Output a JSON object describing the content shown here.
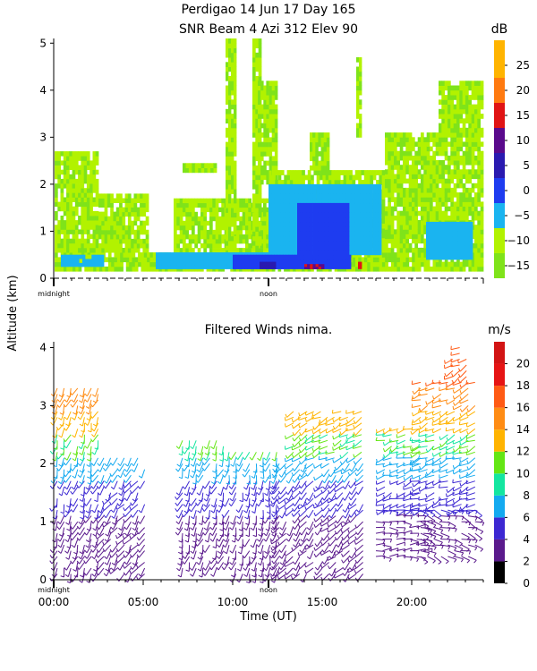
{
  "figure": {
    "title_line1": "Perdigao  14 Jun 17 Day 165",
    "title_line2": "SNR Beam 4 Azi 312 Elev 90",
    "shared_ylabel": "Altitude (km)"
  },
  "chart_data": [
    {
      "type": "heatmap",
      "panel": "snr",
      "title": "SNR Beam 4 Azi 312 Elev 90",
      "ylabel": "Altitude (km)",
      "xlim": [
        0,
        24
      ],
      "ylim": [
        0,
        5.1
      ],
      "yticks": [
        0,
        1,
        2,
        3,
        4,
        5
      ],
      "ytick_labels": [
        "0",
        "1",
        "2",
        "3",
        "4",
        "5"
      ],
      "x_markers": [
        {
          "x": 0,
          "label": "midnight"
        },
        {
          "x": 12,
          "label": "noon"
        }
      ],
      "colorbar": {
        "unit": "dB",
        "ticks": [
          25,
          20,
          15,
          10,
          5,
          0,
          -5,
          -10,
          -15
        ],
        "tick_labels": [
          "25",
          "20",
          "15",
          "10",
          "5",
          "0",
          "−5",
          "−10",
          "−15"
        ],
        "range": [
          -17.5,
          30
        ],
        "bands": [
          {
            "from": -17.5,
            "to": -12.5,
            "color": "#7fe31a"
          },
          {
            "from": -12.5,
            "to": -7.5,
            "color": "#b2f200"
          },
          {
            "from": -7.5,
            "to": -2.5,
            "color": "#1ab4f0"
          },
          {
            "from": -2.5,
            "to": 2.5,
            "color": "#1e3cf0"
          },
          {
            "from": 2.5,
            "to": 7.5,
            "color": "#2a1ab0"
          },
          {
            "from": 7.5,
            "to": 12.5,
            "color": "#5a0a8c"
          },
          {
            "from": 12.5,
            "to": 17.5,
            "color": "#e01414"
          },
          {
            "from": 17.5,
            "to": 22.5,
            "color": "#ff7a10"
          },
          {
            "from": 22.5,
            "to": 30,
            "color": "#ffb400"
          }
        ]
      },
      "regions": [
        {
          "x": [
            0.05,
            24
          ],
          "y": [
            0.15,
            0.55
          ],
          "snr": -12
        },
        {
          "x": [
            0.05,
            2.5
          ],
          "y": [
            0.55,
            2.7
          ],
          "snr": -12
        },
        {
          "x": [
            2.5,
            5.3
          ],
          "y": [
            0.55,
            1.8
          ],
          "snr": -12
        },
        {
          "x": [
            6.7,
            12.2
          ],
          "y": [
            0.55,
            1.7
          ],
          "snr": -12
        },
        {
          "x": [
            7.2,
            9.1
          ],
          "y": [
            2.25,
            2.45
          ],
          "snr": -12
        },
        {
          "x": [
            9.6,
            10.2
          ],
          "y": [
            0.5,
            5.1
          ],
          "snr": -12
        },
        {
          "x": [
            11.1,
            11.6
          ],
          "y": [
            0.5,
            5.1
          ],
          "snr": -12
        },
        {
          "x": [
            11.4,
            12.5
          ],
          "y": [
            2.0,
            4.2
          ],
          "snr": -12
        },
        {
          "x": [
            12.2,
            18.5
          ],
          "y": [
            0.55,
            2.3
          ],
          "snr": -12
        },
        {
          "x": [
            14.3,
            15.4
          ],
          "y": [
            2.3,
            3.1
          ],
          "snr": -12
        },
        {
          "x": [
            16.9,
            17.2
          ],
          "y": [
            3.0,
            4.7
          ],
          "snr": -12
        },
        {
          "x": [
            18.5,
            24
          ],
          "y": [
            0.55,
            3.1
          ],
          "snr": -12
        },
        {
          "x": [
            21.5,
            24
          ],
          "y": [
            3.1,
            4.2
          ],
          "snr": -12
        },
        {
          "x": [
            0.4,
            2.8
          ],
          "y": [
            0.25,
            0.5
          ],
          "snr": -6
        },
        {
          "x": [
            5.7,
            13.0
          ],
          "y": [
            0.2,
            0.55
          ],
          "snr": -5
        },
        {
          "x": [
            12.0,
            18.3
          ],
          "y": [
            0.5,
            2.0
          ],
          "snr": -5
        },
        {
          "x": [
            20.8,
            23.4
          ],
          "y": [
            0.4,
            1.2
          ],
          "snr": -5
        },
        {
          "x": [
            10.0,
            16.6
          ],
          "y": [
            0.2,
            0.5
          ],
          "snr": 0
        },
        {
          "x": [
            13.6,
            16.5
          ],
          "y": [
            0.5,
            1.6
          ],
          "snr": 0
        },
        {
          "x": [
            11.5,
            12.4
          ],
          "y": [
            0.2,
            0.35
          ],
          "snr": 5
        },
        {
          "x": [
            14.0,
            15.1
          ],
          "y": [
            0.2,
            0.3
          ],
          "snr": 13
        },
        {
          "x": [
            17.0,
            17.2
          ],
          "y": [
            0.2,
            0.35
          ],
          "snr": 14
        }
      ]
    },
    {
      "type": "scatter",
      "panel": "winds",
      "title": "Filtered Winds nima.",
      "xlabel": "Time (UT)",
      "ylabel": "Altitude (km)",
      "xlim": [
        0,
        24
      ],
      "ylim": [
        0,
        4.1
      ],
      "xticks": [
        0,
        5,
        10,
        15,
        20
      ],
      "xtick_labels": [
        "00:00",
        "05:00",
        "10:00",
        "15:00",
        "20:00"
      ],
      "yticks": [
        0,
        1,
        2,
        3,
        4
      ],
      "ytick_labels": [
        "0",
        "1",
        "2",
        "3",
        "4"
      ],
      "x_markers": [
        {
          "x": 0,
          "label": "midnight"
        },
        {
          "x": 12,
          "label": "noon"
        }
      ],
      "marker": "wind barb",
      "colorbar": {
        "unit": "m/s",
        "ticks": [
          20,
          18,
          16,
          14,
          12,
          10,
          8,
          6,
          4,
          2,
          0
        ],
        "tick_labels": [
          "20",
          "18",
          "16",
          "14",
          "12",
          "10",
          "8",
          "6",
          "4",
          "2",
          "0"
        ],
        "range": [
          0,
          22
        ],
        "bands": [
          {
            "from": 0,
            "to": 2,
            "color": "#000000"
          },
          {
            "from": 2,
            "to": 4,
            "color": "#5a1a8c"
          },
          {
            "from": 4,
            "to": 6,
            "color": "#3c28d2"
          },
          {
            "from": 6,
            "to": 8,
            "color": "#14aaf0"
          },
          {
            "from": 8,
            "to": 10,
            "color": "#14e6a0"
          },
          {
            "from": 10,
            "to": 12,
            "color": "#64e614"
          },
          {
            "from": 12,
            "to": 14,
            "color": "#ffb400"
          },
          {
            "from": 14,
            "to": 16,
            "color": "#ff8c14"
          },
          {
            "from": 16,
            "to": 18,
            "color": "#ff5a14"
          },
          {
            "from": 18,
            "to": 20,
            "color": "#e61414"
          },
          {
            "from": 20,
            "to": 22,
            "color": "#d21414"
          }
        ]
      },
      "speed_by_altitude": [
        {
          "alt_from": 0.0,
          "alt_to": 1.2,
          "speed": 3
        },
        {
          "alt_from": 1.2,
          "alt_to": 1.8,
          "speed": 5
        },
        {
          "alt_from": 1.8,
          "alt_to": 2.2,
          "speed": 7
        },
        {
          "alt_from": 2.2,
          "alt_to": 2.6,
          "speed": 10
        },
        {
          "alt_from": 2.6,
          "alt_to": 3.0,
          "speed": 13
        },
        {
          "alt_from": 3.0,
          "alt_to": 3.4,
          "speed": 15
        },
        {
          "alt_from": 3.4,
          "alt_to": 4.0,
          "speed": 17
        }
      ],
      "coverage": [
        {
          "x": [
            0.2,
            2.8
          ],
          "y": [
            0.1,
            3.4
          ],
          "dir": 200
        },
        {
          "x": [
            2.8,
            5.1
          ],
          "y": [
            0.1,
            2.2
          ],
          "dir": 215
        },
        {
          "x": [
            7.2,
            9.8
          ],
          "y": [
            0.2,
            2.5
          ],
          "dir": 200
        },
        {
          "x": [
            9.8,
            12.6
          ],
          "y": [
            0.1,
            2.3
          ],
          "dir": 195
        },
        {
          "x": [
            12.6,
            14.8
          ],
          "y": [
            0.1,
            2.1
          ],
          "dir": 220
        },
        {
          "x": [
            13.4,
            17.4
          ],
          "y": [
            2.1,
            3.0
          ],
          "dir": 240
        },
        {
          "x": [
            15.0,
            17.4
          ],
          "y": [
            0.1,
            2.1
          ],
          "dir": 225
        },
        {
          "x": [
            18.5,
            20.5
          ],
          "y": [
            1.2,
            2.7
          ],
          "dir": 250
        },
        {
          "x": [
            18.0,
            20.8
          ],
          "y": [
            0.4,
            1.2
          ],
          "dir": 90
        },
        {
          "x": [
            20.5,
            23.7
          ],
          "y": [
            0.4,
            1.2
          ],
          "dir": 110
        },
        {
          "x": [
            20.5,
            23.7
          ],
          "y": [
            1.2,
            3.5
          ],
          "dir": 245
        },
        {
          "x": [
            22.3,
            23.3
          ],
          "y": [
            3.5,
            4.0
          ],
          "dir": 240
        }
      ]
    }
  ]
}
